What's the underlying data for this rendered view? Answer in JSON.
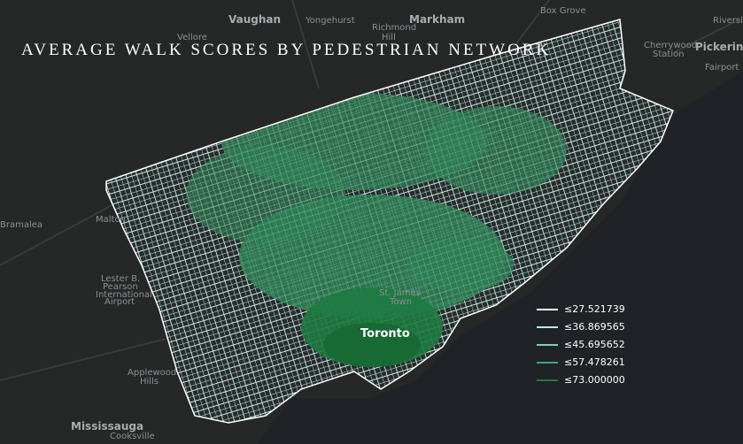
{
  "title": "AVERAGE WALK SCORES BY PEDESTRIAN NETWORK",
  "legend": {
    "items": [
      {
        "label": "≤27.521739",
        "color": "#ffffff"
      },
      {
        "label": "≤36.869565",
        "color": "#b8ece6"
      },
      {
        "label": "≤45.695652",
        "color": "#7fd2b0"
      },
      {
        "label": "≤57.478261",
        "color": "#3fa873"
      },
      {
        "label": "≤73.000000",
        "color": "#1e7a40"
      }
    ]
  },
  "places": [
    {
      "label": "Vaughan"
    },
    {
      "label": "Yongehurst"
    },
    {
      "label": "Richmond"
    },
    {
      "label": "Hill"
    },
    {
      "label": "Markham"
    },
    {
      "label": "Box Grove"
    },
    {
      "label": "Vellore"
    },
    {
      "label": "Cherrywood"
    },
    {
      "label": "Station"
    },
    {
      "label": "Pickering"
    },
    {
      "label": "Fairport"
    },
    {
      "label": "Riversid"
    },
    {
      "label": "Bramalea"
    },
    {
      "label": "Malton"
    },
    {
      "label": "Lester B."
    },
    {
      "label": "Pearson"
    },
    {
      "label": "International"
    },
    {
      "label": "Airport"
    },
    {
      "label": "Applewood"
    },
    {
      "label": "Hills"
    },
    {
      "label": "Mississauga"
    },
    {
      "label": "Cooksville"
    },
    {
      "label": "Toronto"
    },
    {
      "label": "St. James"
    },
    {
      "label": "Town"
    }
  ]
}
